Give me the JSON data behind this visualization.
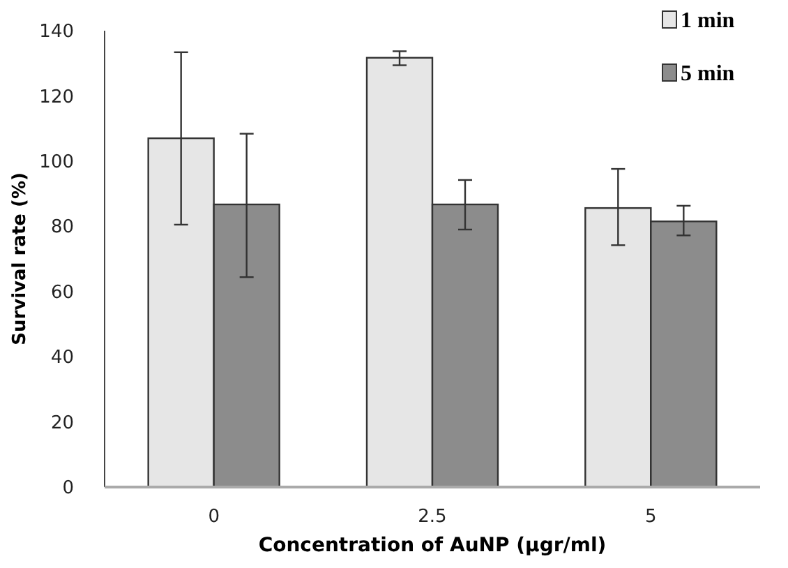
{
  "chart_data": {
    "type": "bar",
    "xlabel": "Concentration of AuNP (µgr/ml)",
    "ylabel": "Survival rate (%)",
    "categories": [
      "0",
      "2.5",
      "5"
    ],
    "series": [
      {
        "name": "1 min",
        "color": "#e6e6e6",
        "values": [
          107,
          131.7,
          85.6
        ],
        "errors": [
          [
            80.5,
            133.4
          ],
          [
            129.4,
            133.7
          ],
          [
            74.2,
            97.6
          ]
        ]
      },
      {
        "name": "5 min",
        "color": "#8c8c8c",
        "values": [
          86.7,
          86.7,
          81.5
        ],
        "errors": [
          [
            64.4,
            108.4
          ],
          [
            79,
            94.2
          ],
          [
            77.2,
            86.3
          ]
        ]
      }
    ],
    "ylim": [
      0,
      140
    ],
    "yticks": [
      0,
      20,
      40,
      60,
      80,
      100,
      120,
      140
    ],
    "legend": "top right"
  }
}
